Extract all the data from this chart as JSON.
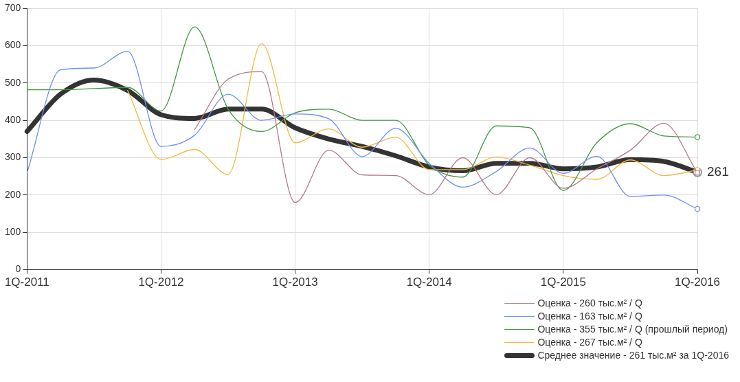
{
  "chart_data": {
    "type": "line",
    "categories": [
      "1Q-2011",
      null,
      null,
      null,
      "1Q-2012",
      null,
      null,
      null,
      "1Q-2013",
      null,
      null,
      null,
      "1Q-2014",
      null,
      null,
      null,
      "1Q-2015",
      null,
      null,
      null,
      "1Q-2016"
    ],
    "ylim": [
      0,
      700
    ],
    "yticks": [
      0,
      100,
      200,
      300,
      400,
      500,
      600,
      700
    ],
    "grid": true,
    "legend": "bottom right",
    "series": [
      {
        "name": "Оценка - 260 тыс.м² / Q",
        "color": "#b07a8c",
        "values": [
          null,
          null,
          null,
          null,
          null,
          375,
          510,
          530,
          180,
          320,
          254,
          252,
          201,
          300,
          201,
          300,
          218,
          270,
          320,
          392,
          260
        ]
      },
      {
        "name": "Оценка - 163 тыс.м² / Q",
        "color": "#6d8ff0",
        "values": [
          260,
          535,
          540,
          585,
          330,
          360,
          470,
          400,
          417,
          404,
          303,
          379,
          285,
          221,
          263,
          326,
          258,
          304,
          196,
          200,
          163
        ]
      },
      {
        "name": "Оценка - 355 тыс.м² / Q (прошлый период)",
        "color": "#3f9a3f",
        "values": [
          482,
          482,
          485,
          488,
          425,
          650,
          430,
          370,
          420,
          430,
          400,
          400,
          280,
          248,
          385,
          380,
          212,
          340,
          391,
          358,
          355
        ]
      },
      {
        "name": "Оценка - 267 тыс.м² / Q",
        "color": "#f5b83d",
        "values": [
          null,
          null,
          null,
          480,
          295,
          322,
          255,
          605,
          340,
          377,
          328,
          355,
          268,
          268,
          302,
          280,
          252,
          242,
          294,
          252,
          267
        ]
      },
      {
        "name": "Среднее значение - 261 тыс.м² за 1Q-2016",
        "color": "#333333",
        "values": [
          370,
          470,
          508,
          480,
          415,
          405,
          430,
          430,
          380,
          350,
          330,
          305,
          275,
          265,
          285,
          285,
          270,
          275,
          295,
          290,
          261
        ],
        "value_labels": [
          null,
          null,
          null,
          null,
          null,
          null,
          null,
          null,
          null,
          null,
          null,
          null,
          null,
          null,
          null,
          null,
          null,
          null,
          null,
          null,
          "261"
        ]
      }
    ]
  }
}
